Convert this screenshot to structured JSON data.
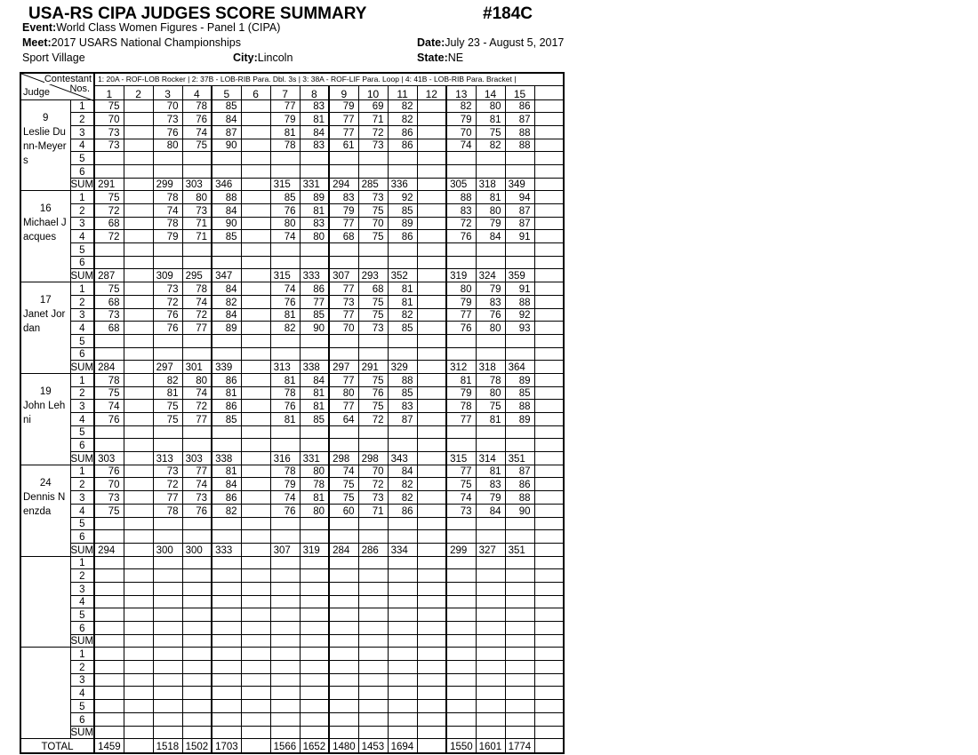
{
  "header": {
    "title": "USA-RS CIPA JUDGES SCORE SUMMARY",
    "code": "#184C",
    "event_label": "Event:",
    "event": "World Class Women Figures - Panel 1  (CIPA)",
    "meet_label": "Meet:",
    "meet": "2017 USARS National Championships",
    "date_label": "Date:",
    "date": "July 23 - August 5, 2017",
    "venue": "Sport Village",
    "city_label": "City:",
    "city": "Lincoln",
    "state_label": "State:",
    "state": "NE"
  },
  "table": {
    "corner_contestant": "Contestant",
    "corner_nos": "Nos.",
    "corner_judge": "Judge",
    "figures": "1: 20A - ROF-LOB Rocker |  2: 37B - LOB-RIB Para. Dbl. 3s |  3: 38A - ROF-LIF Para. Loop |  4: 41B - LOB-RIB Para. Bracket |",
    "contestants": [
      "1",
      "2",
      "3",
      "4",
      "5",
      "6",
      "7",
      "8",
      "9",
      "10",
      "11",
      "12",
      "13",
      "14",
      "15",
      ""
    ],
    "row_labels": [
      "1",
      "2",
      "3",
      "4",
      "5",
      "6",
      "SUM"
    ],
    "total_label": "TOTAL",
    "judges": [
      {
        "number": "9",
        "name": "Leslie Dunn-Meyers",
        "rows": [
          [
            75,
            null,
            70,
            78,
            85,
            null,
            77,
            83,
            79,
            69,
            82,
            null,
            82,
            80,
            86
          ],
          [
            70,
            null,
            73,
            76,
            84,
            null,
            79,
            81,
            77,
            71,
            82,
            null,
            79,
            81,
            87
          ],
          [
            73,
            null,
            76,
            74,
            87,
            null,
            81,
            84,
            77,
            72,
            86,
            null,
            70,
            75,
            88
          ],
          [
            73,
            null,
            80,
            75,
            90,
            null,
            78,
            83,
            61,
            73,
            86,
            null,
            74,
            82,
            88
          ]
        ],
        "sums": [
          291,
          null,
          299,
          303,
          346,
          null,
          315,
          331,
          294,
          285,
          336,
          null,
          305,
          318,
          349
        ]
      },
      {
        "number": "16",
        "name": "Michael Jacques",
        "rows": [
          [
            75,
            null,
            78,
            80,
            88,
            null,
            85,
            89,
            83,
            73,
            92,
            null,
            88,
            81,
            94
          ],
          [
            72,
            null,
            74,
            73,
            84,
            null,
            76,
            81,
            79,
            75,
            85,
            null,
            83,
            80,
            87
          ],
          [
            68,
            null,
            78,
            71,
            90,
            null,
            80,
            83,
            77,
            70,
            89,
            null,
            72,
            79,
            87
          ],
          [
            72,
            null,
            79,
            71,
            85,
            null,
            74,
            80,
            68,
            75,
            86,
            null,
            76,
            84,
            91
          ]
        ],
        "sums": [
          287,
          null,
          309,
          295,
          347,
          null,
          315,
          333,
          307,
          293,
          352,
          null,
          319,
          324,
          359
        ]
      },
      {
        "number": "17",
        "name": "Janet Jordan",
        "rows": [
          [
            75,
            null,
            73,
            78,
            84,
            null,
            74,
            86,
            77,
            68,
            81,
            null,
            80,
            79,
            91
          ],
          [
            68,
            null,
            72,
            74,
            82,
            null,
            76,
            77,
            73,
            75,
            81,
            null,
            79,
            83,
            88
          ],
          [
            73,
            null,
            76,
            72,
            84,
            null,
            81,
            85,
            77,
            75,
            82,
            null,
            77,
            76,
            92
          ],
          [
            68,
            null,
            76,
            77,
            89,
            null,
            82,
            90,
            70,
            73,
            85,
            null,
            76,
            80,
            93
          ]
        ],
        "sums": [
          284,
          null,
          297,
          301,
          339,
          null,
          313,
          338,
          297,
          291,
          329,
          null,
          312,
          318,
          364
        ]
      },
      {
        "number": "19",
        "name": "John Lehni",
        "rows": [
          [
            78,
            null,
            82,
            80,
            86,
            null,
            81,
            84,
            77,
            75,
            88,
            null,
            81,
            78,
            89
          ],
          [
            75,
            null,
            81,
            74,
            81,
            null,
            78,
            81,
            80,
            76,
            85,
            null,
            79,
            80,
            85
          ],
          [
            74,
            null,
            75,
            72,
            86,
            null,
            76,
            81,
            77,
            75,
            83,
            null,
            78,
            75,
            88
          ],
          [
            76,
            null,
            75,
            77,
            85,
            null,
            81,
            85,
            64,
            72,
            87,
            null,
            77,
            81,
            89
          ]
        ],
        "sums": [
          303,
          null,
          313,
          303,
          338,
          null,
          316,
          331,
          298,
          298,
          343,
          null,
          315,
          314,
          351
        ]
      },
      {
        "number": "24",
        "name": "Dennis Nenzda",
        "rows": [
          [
            76,
            null,
            73,
            77,
            81,
            null,
            78,
            80,
            74,
            70,
            84,
            null,
            77,
            81,
            87
          ],
          [
            70,
            null,
            72,
            74,
            84,
            null,
            79,
            78,
            75,
            72,
            82,
            null,
            75,
            83,
            86
          ],
          [
            73,
            null,
            77,
            73,
            86,
            null,
            74,
            81,
            75,
            73,
            82,
            null,
            74,
            79,
            88
          ],
          [
            75,
            null,
            78,
            76,
            82,
            null,
            76,
            80,
            60,
            71,
            86,
            null,
            73,
            84,
            90
          ]
        ],
        "sums": [
          294,
          null,
          300,
          300,
          333,
          null,
          307,
          319,
          284,
          286,
          334,
          null,
          299,
          327,
          351
        ]
      },
      {
        "number": "",
        "name": "",
        "rows": [],
        "sums": []
      },
      {
        "number": "",
        "name": "",
        "rows": [],
        "sums": []
      }
    ],
    "totals": [
      1459,
      null,
      1518,
      1502,
      1703,
      null,
      1566,
      1652,
      1480,
      1453,
      1694,
      null,
      1550,
      1601,
      1774
    ]
  }
}
